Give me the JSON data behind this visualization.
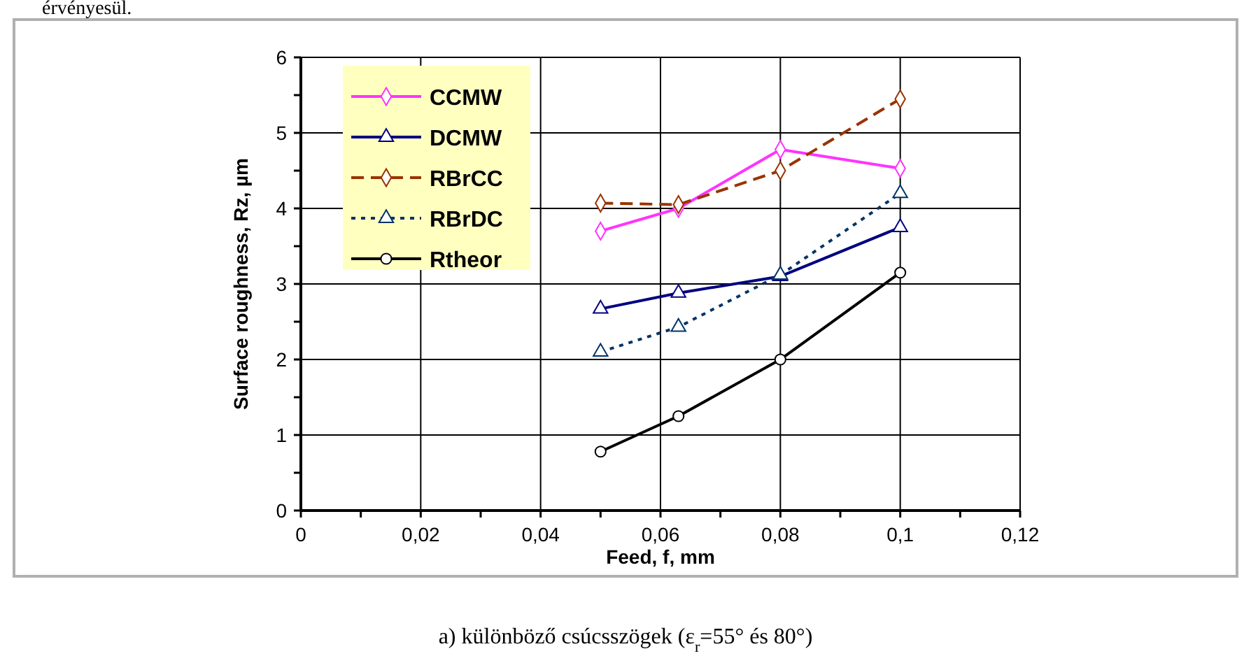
{
  "chart_data": {
    "type": "line",
    "xlabel": "Feed, f, mm",
    "ylabel": "Surface roughness, Rz, µm",
    "annotations": [
      "érvényesül.",
      "a) különböző csúcsszögek (ε$_{r}$=55° és 80°)"
    ],
    "x": [
      0.05,
      0.063,
      0.08,
      0.1
    ],
    "series": [
      {
        "name": "CCMW",
        "color": "#ff33ff",
        "marker": "diamond",
        "line_style": "solid",
        "values": [
          3.7,
          4.0,
          4.78,
          4.53
        ]
      },
      {
        "name": "DCMW",
        "color": "#000080",
        "marker": "triangle",
        "line_style": "solid",
        "values": [
          2.67,
          2.88,
          3.1,
          3.75
        ]
      },
      {
        "name": "RBrCC",
        "color": "#993300",
        "marker": "diamond",
        "line_style": "dashed",
        "values": [
          4.07,
          4.05,
          4.5,
          5.45
        ]
      },
      {
        "name": "RBrDC",
        "color": "#003366",
        "marker": "triangle",
        "line_style": "dotted",
        "values": [
          2.1,
          2.43,
          3.12,
          4.2
        ]
      },
      {
        "name": "Rtheor",
        "color": "#000000",
        "marker": "circle",
        "line_style": "solid",
        "values": [
          0.78,
          1.25,
          2.0,
          3.15
        ]
      }
    ],
    "xlim": [
      0,
      0.12
    ],
    "xticks": [
      0,
      {
        "value": 0.01,
        "label": null
      },
      {
        "value": 0.02,
        "label": "0,02"
      },
      {
        "value": 0.03,
        "label": null
      },
      {
        "value": 0.04,
        "label": "0,04"
      },
      {
        "value": 0.05,
        "label": null
      },
      {
        "value": 0.06,
        "label": "0,06"
      },
      {
        "value": 0.07,
        "label": null
      },
      {
        "value": 0.08,
        "label": "0,08"
      },
      {
        "value": 0.09,
        "label": null
      },
      {
        "value": 0.1,
        "label": "0,1"
      },
      {
        "value": 0.11,
        "label": null
      },
      {
        "value": 0.12,
        "label": "0,12"
      }
    ],
    "ylim": [
      0,
      6
    ],
    "yticks": [
      0,
      {
        "value": 0.5,
        "label": null
      },
      1,
      {
        "value": 1.5,
        "label": null
      },
      2,
      {
        "value": 2.5,
        "label": null
      },
      3,
      {
        "value": 3.5,
        "label": null
      },
      4,
      {
        "value": 4.5,
        "label": null
      },
      5,
      {
        "value": 5.5,
        "label": null
      },
      6
    ],
    "grid": true,
    "legend": "top left"
  }
}
